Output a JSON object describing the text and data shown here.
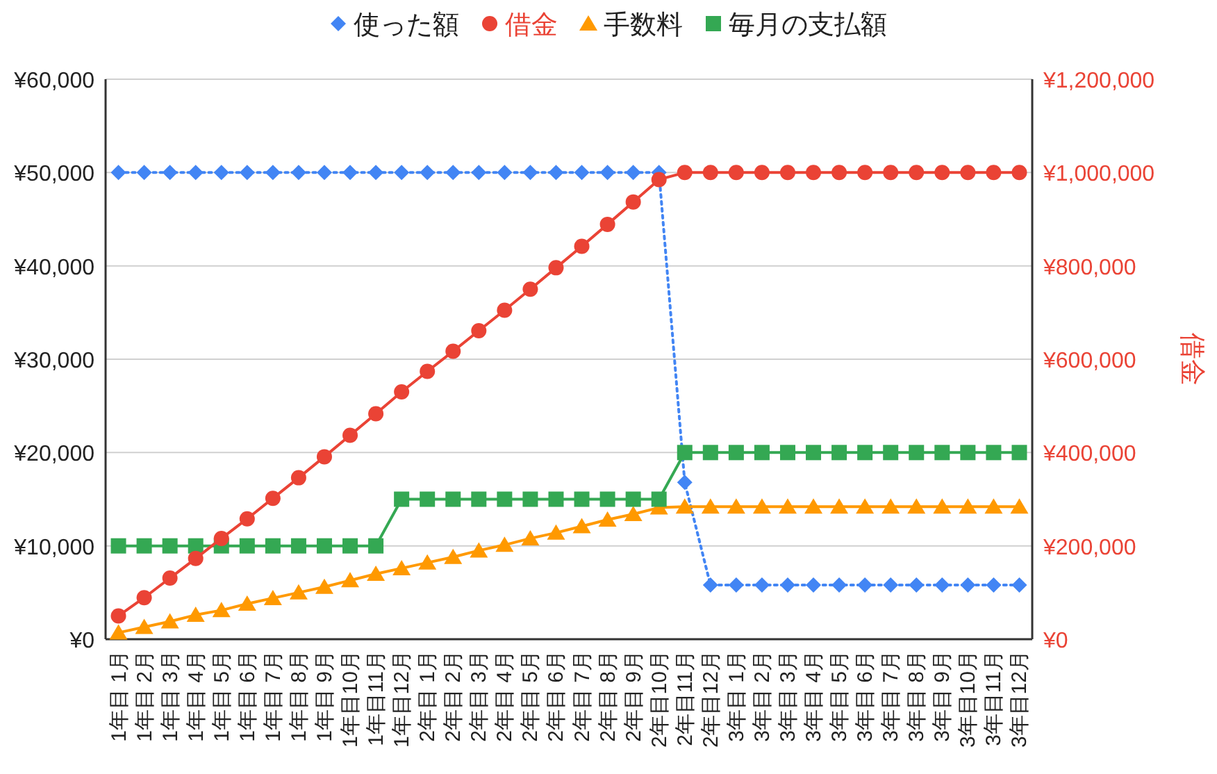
{
  "chart_data": {
    "type": "line",
    "categories": [
      "1年目 1月",
      "1年目 2月",
      "1年目 3月",
      "1年目 4月",
      "1年目 5月",
      "1年目 6月",
      "1年目 7月",
      "1年目 8月",
      "1年目 9月",
      "1年目10月",
      "1年目11月",
      "1年目12月",
      "2年目 1月",
      "2年目 2月",
      "2年目 3月",
      "2年目 4月",
      "2年目 5月",
      "2年目 6月",
      "2年目 7月",
      "2年目 8月",
      "2年目 9月",
      "2年目10月",
      "2年目11月",
      "2年目12月",
      "3年目 1月",
      "3年目 2月",
      "3年目 3月",
      "3年目 4月",
      "3年目 5月",
      "3年目 6月",
      "3年目 7月",
      "3年目 8月",
      "3年目 9月",
      "3年目10月",
      "3年目11月",
      "3年目12月"
    ],
    "series": [
      {
        "name": "使った額",
        "color": "#4285f4",
        "marker": "diamond",
        "line_style": "dotted",
        "values": [
          50000,
          50000,
          50000,
          50000,
          50000,
          50000,
          50000,
          50000,
          50000,
          50000,
          50000,
          50000,
          50000,
          50000,
          50000,
          50000,
          50000,
          50000,
          50000,
          50000,
          50000,
          50000,
          16800,
          5800,
          5800,
          5800,
          5800,
          5800,
          5800,
          5800,
          5800,
          5800,
          5800,
          5800,
          5800,
          5800
        ]
      },
      {
        "name": "借金",
        "color": "#ea4335",
        "marker": "circle",
        "line_style": "solid",
        "axis": "y2",
        "values": [
          50000,
          89000,
          131000,
          173000,
          216000,
          258000,
          302000,
          346000,
          391000,
          437000,
          483000,
          530000,
          574000,
          617000,
          661000,
          705000,
          750000,
          796000,
          842000,
          889000,
          937000,
          985000,
          1000000,
          1000000,
          1000000,
          1000000,
          1000000,
          1000000,
          1000000,
          1000000,
          1000000,
          1000000,
          1000000,
          1000000,
          1000000,
          1000000
        ]
      },
      {
        "name": "手数料",
        "color": "#ff9900",
        "marker": "triangle",
        "line_style": "solid",
        "values": [
          700,
          1300,
          1900,
          2600,
          3100,
          3800,
          4400,
          5000,
          5600,
          6300,
          7000,
          7600,
          8200,
          8800,
          9500,
          10100,
          10800,
          11400,
          12100,
          12800,
          13400,
          14100,
          14200,
          14200,
          14200,
          14200,
          14200,
          14200,
          14200,
          14200,
          14200,
          14200,
          14200,
          14200,
          14200,
          14200
        ]
      },
      {
        "name": "毎月の支払額",
        "color": "#34a853",
        "marker": "square",
        "line_style": "solid",
        "values": [
          10000,
          10000,
          10000,
          10000,
          10000,
          10000,
          10000,
          10000,
          10000,
          10000,
          10000,
          15000,
          15000,
          15000,
          15000,
          15000,
          15000,
          15000,
          15000,
          15000,
          15000,
          15000,
          20000,
          20000,
          20000,
          20000,
          20000,
          20000,
          20000,
          20000,
          20000,
          20000,
          20000,
          20000,
          20000,
          20000
        ]
      }
    ],
    "ylim": [
      0,
      60000
    ],
    "yticks": [
      {
        "value": 0,
        "label": "¥0"
      },
      {
        "value": 10000,
        "label": "¥10,000"
      },
      {
        "value": 20000,
        "label": "¥20,000"
      },
      {
        "value": 30000,
        "label": "¥30,000"
      },
      {
        "value": 40000,
        "label": "¥40,000"
      },
      {
        "value": 50000,
        "label": "¥50,000"
      },
      {
        "value": 60000,
        "label": "¥60,000"
      }
    ],
    "y2lim": [
      0,
      1200000
    ],
    "y2ticks": [
      {
        "value": 0,
        "label": "¥0"
      },
      {
        "value": 200000,
        "label": "¥200,000"
      },
      {
        "value": 400000,
        "label": "¥400,000"
      },
      {
        "value": 600000,
        "label": "¥600,000"
      },
      {
        "value": 800000,
        "label": "¥800,000"
      },
      {
        "value": 1000000,
        "label": "¥1,000,000"
      },
      {
        "value": 1200000,
        "label": "¥1,200,000"
      }
    ],
    "y2label": "借金",
    "grid": "y",
    "legend": "top"
  }
}
